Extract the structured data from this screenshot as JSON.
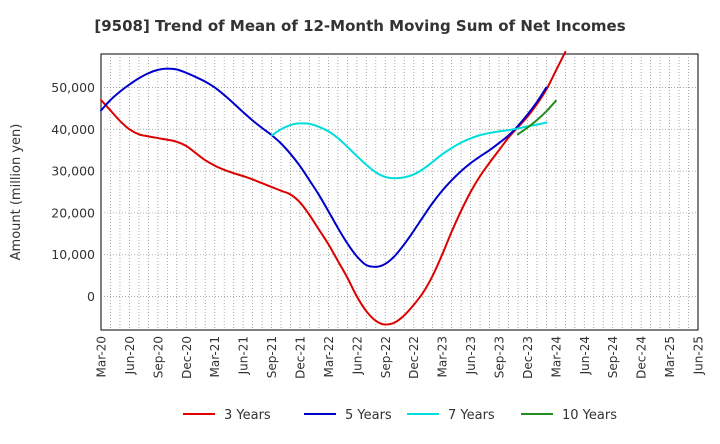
{
  "chart_data": {
    "type": "line",
    "title": "[9508]  Trend of Mean of 12-Month Moving Sum of Net Incomes",
    "ylabel": "Amount (million yen)",
    "xlabel": "",
    "ylim": [
      -8000,
      58000
    ],
    "yticks": [
      0,
      10000,
      20000,
      30000,
      40000,
      50000
    ],
    "ytick_labels": [
      "0",
      "10,000",
      "20,000",
      "30,000",
      "40,000",
      "50,000"
    ],
    "xticks": [
      "Mar-20",
      "Jun-20",
      "Sep-20",
      "Dec-20",
      "Mar-21",
      "Jun-21",
      "Sep-21",
      "Dec-21",
      "Mar-22",
      "Jun-22",
      "Sep-22",
      "Dec-22",
      "Mar-23",
      "Jun-23",
      "Sep-23",
      "Dec-23",
      "Mar-24",
      "Jun-24",
      "Sep-24",
      "Dec-24",
      "Mar-25",
      "Jun-25"
    ],
    "grid": true,
    "legend_position": "bottom",
    "series": [
      {
        "name": "3 Years",
        "color": "#dd0000",
        "start_index": 0,
        "values": [
          47000,
          44500,
          42000,
          40000,
          38800,
          38300,
          37900,
          37500,
          37000,
          36000,
          34300,
          32600,
          31300,
          30300,
          29500,
          28800,
          28000,
          27100,
          26200,
          25300,
          24400,
          22500,
          19500,
          16000,
          12500,
          8500,
          4500,
          0,
          -3500,
          -5800,
          -6700,
          -6200,
          -4500,
          -2000,
          1000,
          5000,
          10000,
          15500,
          20500,
          25000,
          28800,
          32000,
          35000,
          38000,
          40500,
          43000,
          46000,
          49500,
          54000,
          58500
        ]
      },
      {
        "name": "5 Years",
        "color": "#0000cc",
        "start_index": 0,
        "values": [
          44500,
          47000,
          49000,
          50700,
          52200,
          53400,
          54200,
          54500,
          54300,
          53500,
          52500,
          51400,
          50000,
          48200,
          46200,
          44100,
          42100,
          40300,
          38600,
          36600,
          34100,
          31200,
          27800,
          24300,
          20400,
          16400,
          12700,
          9600,
          7500,
          7100,
          7800,
          9700,
          12500,
          15700,
          19100,
          22400,
          25300,
          27800,
          30000,
          31900,
          33500,
          35000,
          36700,
          38500,
          40800,
          43500,
          46500,
          50000
        ]
      },
      {
        "name": "7 Years",
        "color": "#00dddd",
        "start_index": 18,
        "values": [
          38500,
          40000,
          41000,
          41400,
          41300,
          40600,
          39500,
          37900,
          35800,
          33600,
          31500,
          29700,
          28600,
          28300,
          28500,
          29200,
          30500,
          32200,
          34000,
          35500,
          36800,
          37800,
          38600,
          39100,
          39500,
          39800,
          40200,
          40700,
          41100,
          41600
        ]
      },
      {
        "name": "10 Years",
        "color": "#228b22",
        "start_index": 44,
        "values": [
          38800,
          40400,
          42200,
          44300,
          46800
        ]
      }
    ]
  }
}
